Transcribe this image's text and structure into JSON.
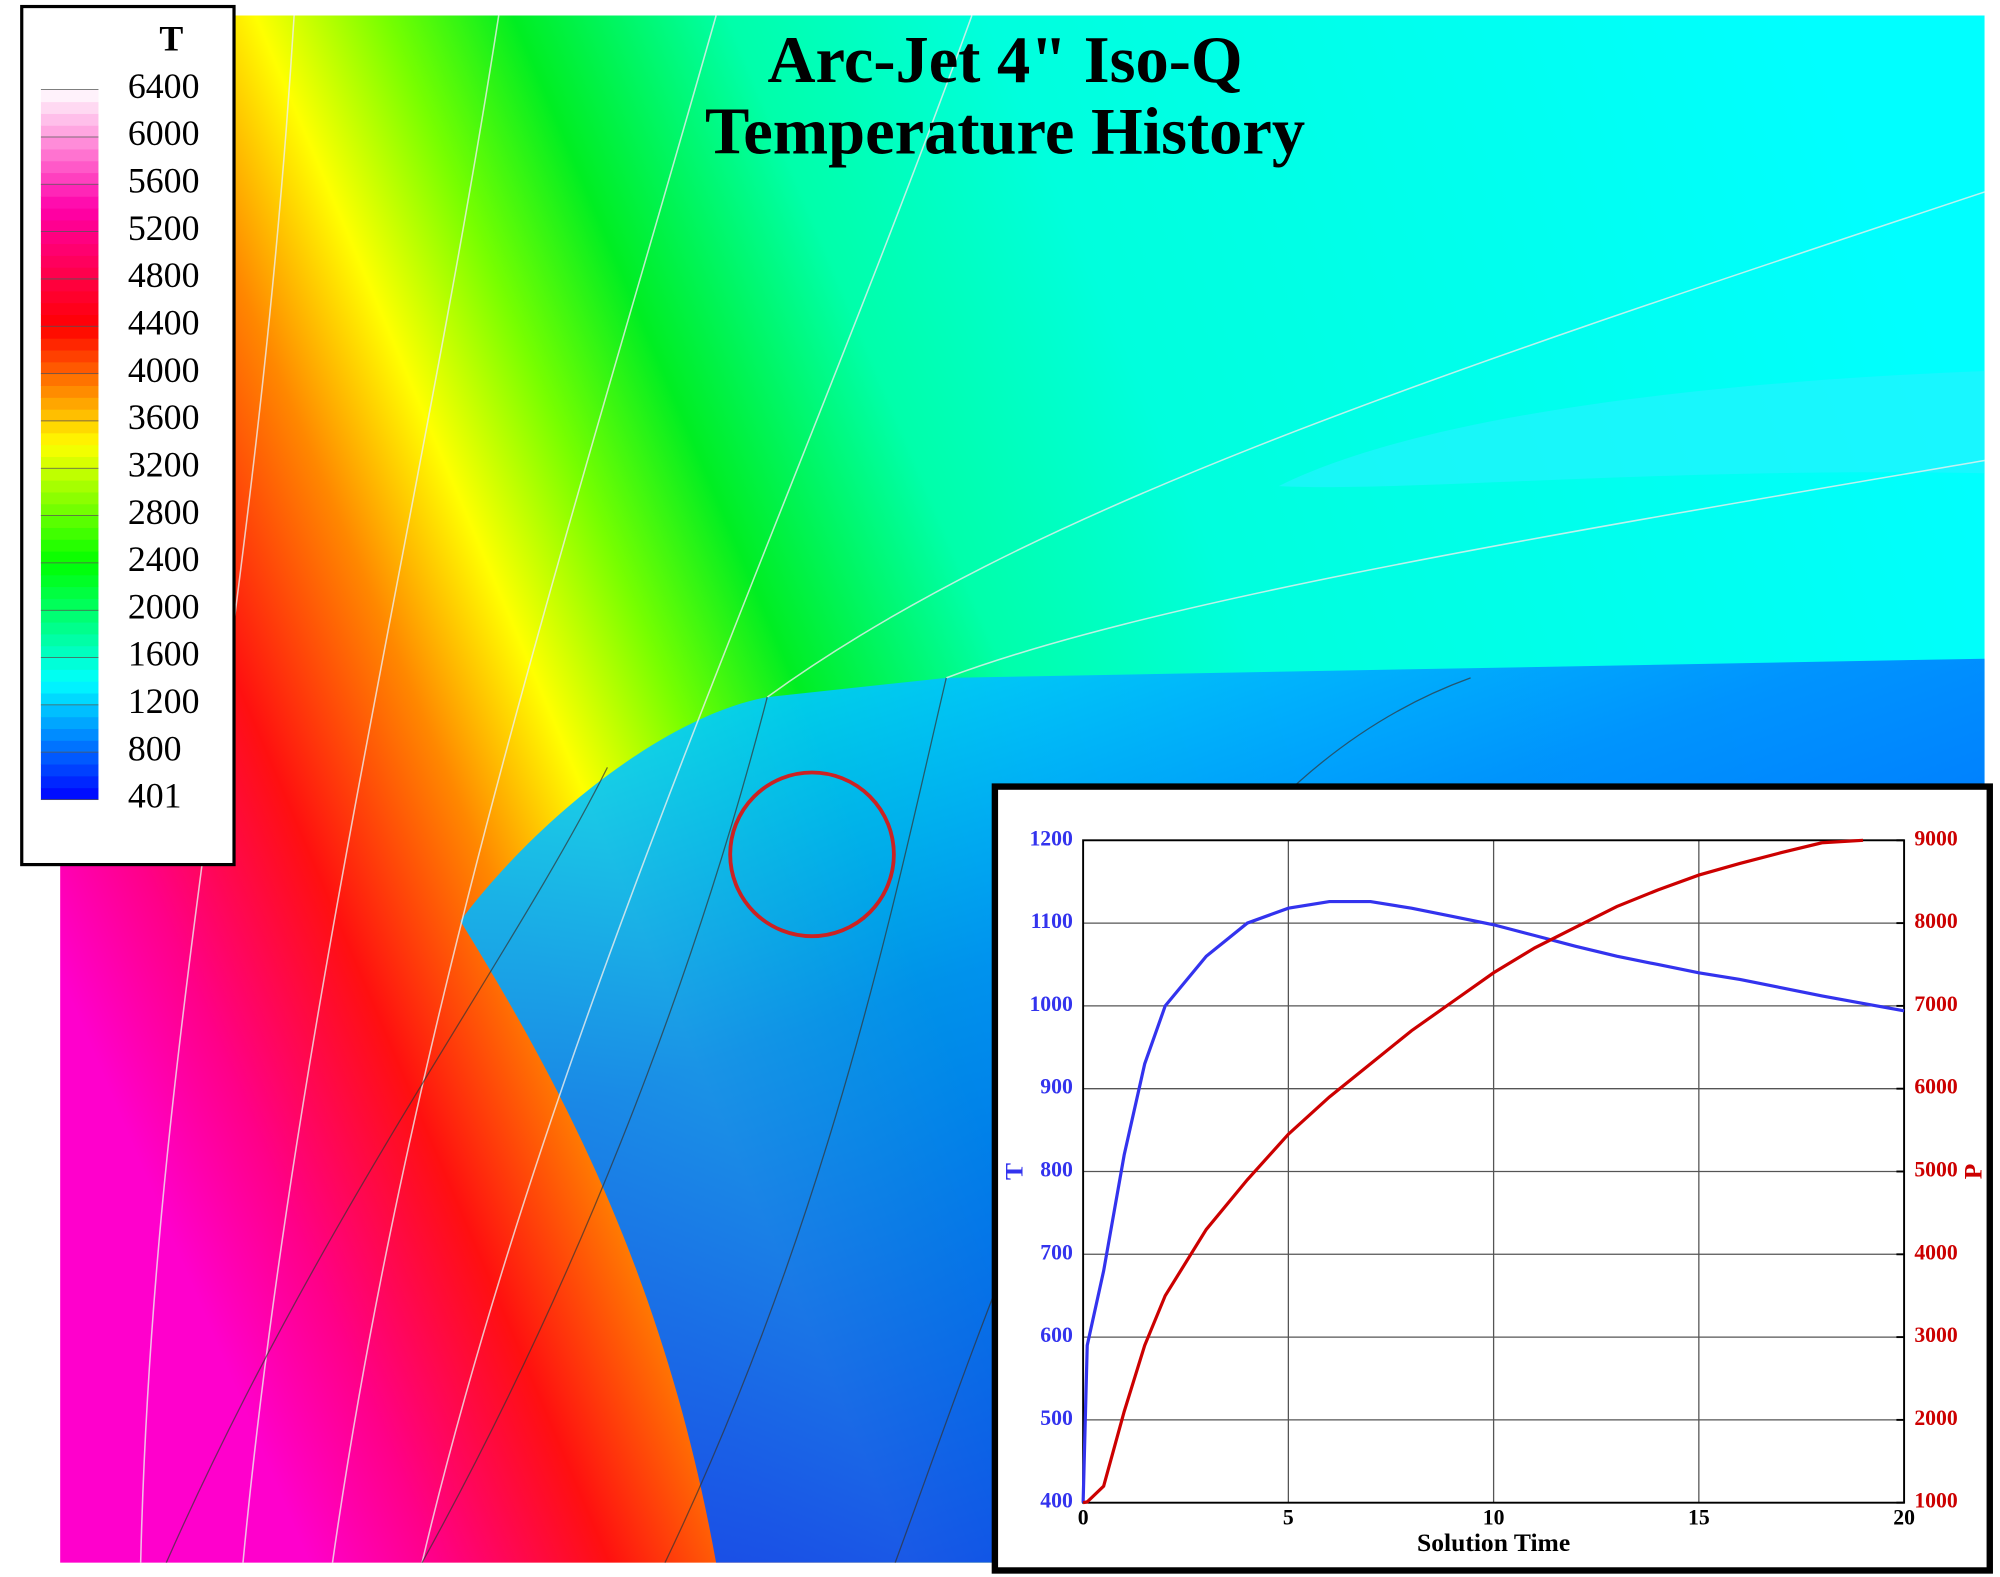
{
  "chart_data": [
    {
      "type": "contour",
      "title": "Arc-Jet 4\" Iso-Q",
      "subtitle": "Temperature History",
      "colorbar_label": "T",
      "clim": [
        401,
        6400
      ],
      "colorbar_ticks": [
        6400,
        6000,
        5600,
        5200,
        4800,
        4400,
        4000,
        3600,
        3200,
        2800,
        2400,
        2000,
        1600,
        1200,
        800,
        401
      ],
      "colormap": [
        "#0000ff",
        "#00ffff",
        "#00ff00",
        "#ffff00",
        "#ff0000",
        "#ff00aa",
        "#ffffff"
      ]
    },
    {
      "type": "line",
      "xlabel": "Solution Time",
      "ylabel": "T",
      "y2label": "P",
      "x": [
        0,
        0.1,
        0.5,
        1,
        1.5,
        2,
        3,
        4,
        5,
        6,
        7,
        8,
        9,
        10,
        11,
        12,
        13,
        14,
        15,
        16,
        17,
        18,
        19,
        20
      ],
      "series": [
        {
          "name": "T",
          "color": "#3333ee",
          "axis": "y",
          "values": [
            400,
            590,
            680,
            820,
            930,
            1000,
            1060,
            1100,
            1118,
            1126,
            1126,
            1118,
            1108,
            1098,
            1085,
            1072,
            1060,
            1050,
            1040,
            1032,
            1022,
            1012,
            1003,
            994
          ]
        },
        {
          "name": "P",
          "color": "#cc0000",
          "axis": "y2",
          "values": [
            1000,
            1010,
            1200,
            2100,
            2900,
            3500,
            4300,
            4900,
            5450,
            5900,
            6300,
            6700,
            7050,
            7400,
            7700,
            7950,
            8200,
            8400,
            8580,
            8720,
            8850,
            8970,
            9000,
            null
          ]
        }
      ],
      "xlim": [
        0,
        20
      ],
      "xticks": [
        0,
        5,
        10,
        15,
        20
      ],
      "ylim": [
        400,
        1200
      ],
      "yticks": [
        400,
        500,
        600,
        700,
        800,
        900,
        1000,
        1100,
        1200
      ],
      "y2lim": [
        1000,
        9000
      ],
      "y2ticks": [
        1000,
        2000,
        3000,
        4000,
        5000,
        6000,
        7000,
        8000,
        9000
      ],
      "grid": true
    }
  ]
}
